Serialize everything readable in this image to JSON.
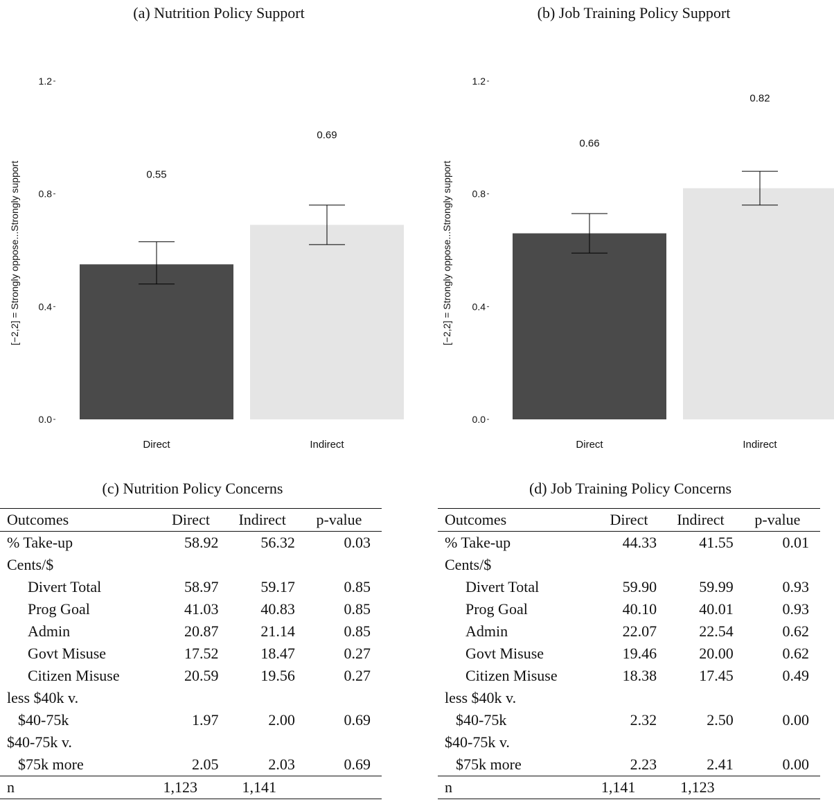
{
  "chart_data": [
    {
      "type": "bar",
      "title": "(a) Nutrition Policy Support",
      "ylabel": "[−2,2] = Strongly oppose...Strongly support",
      "xlabel": "",
      "categories": [
        "Direct",
        "Indirect"
      ],
      "values": [
        0.55,
        0.69
      ],
      "labels": [
        "0.55",
        "0.69"
      ],
      "error_low": [
        0.48,
        0.62
      ],
      "error_high": [
        0.63,
        0.76
      ],
      "bar_colors": [
        "#4a4a4a",
        "#e5e5e5"
      ],
      "ylim": [
        0,
        1.2
      ],
      "yticks": [
        0.0,
        0.4,
        0.8,
        1.2
      ],
      "ytick_labels": [
        "0.0",
        "0.4",
        "0.8",
        "1.2"
      ],
      "grid": false
    },
    {
      "type": "bar",
      "title": "(b) Job Training Policy Support",
      "ylabel": "[−2,2] = Strongly oppose...Strongly support",
      "xlabel": "",
      "categories": [
        "Direct",
        "Indirect"
      ],
      "values": [
        0.66,
        0.82
      ],
      "labels": [
        "0.66",
        "0.82"
      ],
      "error_low": [
        0.59,
        0.76
      ],
      "error_high": [
        0.73,
        0.88
      ],
      "bar_colors": [
        "#4a4a4a",
        "#e5e5e5"
      ],
      "ylim": [
        0,
        1.2
      ],
      "yticks": [
        0.0,
        0.4,
        0.8,
        1.2
      ],
      "ytick_labels": [
        "0.0",
        "0.4",
        "0.8",
        "1.2"
      ],
      "grid": false
    },
    {
      "type": "table",
      "title": "(c) Nutrition Policy Concerns",
      "columns": [
        "Outcomes",
        "Direct",
        "Indirect",
        "p-value"
      ],
      "rows": [
        [
          "% Take-up",
          "58.92",
          "56.32",
          "0.03"
        ],
        [
          "Cents/$",
          "",
          "",
          ""
        ],
        [
          "Divert Total",
          "58.97",
          "59.17",
          "0.85"
        ],
        [
          "Prog Goal",
          "41.03",
          "40.83",
          "0.85"
        ],
        [
          "Admin",
          "20.87",
          "21.14",
          "0.85"
        ],
        [
          "Govt Misuse",
          "17.52",
          "18.47",
          "0.27"
        ],
        [
          "Citizen Misuse",
          "20.59",
          "19.56",
          "0.27"
        ],
        [
          "less $40k v.",
          "",
          "",
          ""
        ],
        [
          "$40-75k",
          "1.97",
          "2.00",
          "0.69"
        ],
        [
          "$40-75k v.",
          "",
          "",
          ""
        ],
        [
          "$75k more",
          "2.05",
          "2.03",
          "0.69"
        ],
        [
          "n",
          "1,123",
          "1,141",
          ""
        ]
      ]
    },
    {
      "type": "table",
      "title": "(d) Job Training Policy Concerns",
      "columns": [
        "Outcomes",
        "Direct",
        "Indirect",
        "p-value"
      ],
      "rows": [
        [
          "% Take-up",
          "44.33",
          "41.55",
          "0.01"
        ],
        [
          "Cents/$",
          "",
          "",
          ""
        ],
        [
          "Divert Total",
          "59.90",
          "59.99",
          "0.93"
        ],
        [
          "Prog Goal",
          "40.10",
          "40.01",
          "0.93"
        ],
        [
          "Admin",
          "22.07",
          "22.54",
          "0.62"
        ],
        [
          "Govt Misuse",
          "19.46",
          "20.00",
          "0.62"
        ],
        [
          "Citizen Misuse",
          "18.38",
          "17.45",
          "0.49"
        ],
        [
          "less $40k v.",
          "",
          "",
          ""
        ],
        [
          "$40-75k",
          "2.32",
          "2.50",
          "0.00"
        ],
        [
          "$40-75k v.",
          "",
          "",
          ""
        ],
        [
          "$75k more",
          "2.23",
          "2.41",
          "0.00"
        ],
        [
          "n",
          "1,141",
          "1,123",
          ""
        ]
      ]
    }
  ]
}
